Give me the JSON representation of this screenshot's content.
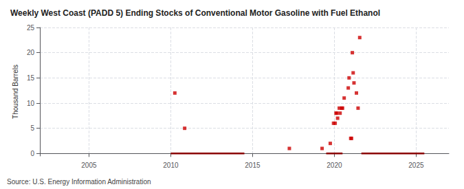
{
  "chart_data": {
    "type": "scatter",
    "title": "Weekly West Coast (PADD 5) Ending Stocks of Conventional Motor Gasoline with Fuel Ethanol",
    "ylabel": "Thousand Barrels",
    "annotations": [
      "Source: U.S. Energy Information Administration"
    ],
    "xlim": [
      2002,
      2027
    ],
    "ylim": [
      -0.5,
      25
    ],
    "xticks": [
      2005,
      2010,
      2015,
      2020,
      2025
    ],
    "yticks": [
      0,
      5,
      10,
      15,
      20,
      25
    ],
    "grid": true,
    "series": [
      {
        "type": "scatter",
        "color": "#cc0000",
        "marker": "square",
        "x": [
          2010.25,
          2010.85,
          2017.25,
          2019.25,
          2019.75,
          2019.95,
          2020.05,
          2020.1,
          2020.15,
          2020.2,
          2020.3,
          2020.35,
          2020.45,
          2020.5,
          2020.6,
          2020.85,
          2020.9,
          2021.0,
          2021.05,
          2021.1,
          2021.15,
          2021.2,
          2021.35,
          2021.45,
          2021.55
        ],
        "values": [
          12,
          5,
          1,
          1,
          2,
          6,
          6,
          8,
          8,
          7,
          9,
          8,
          9,
          9,
          11,
          13,
          15,
          3,
          3,
          20,
          16,
          14,
          12,
          9,
          23
        ]
      },
      {
        "type": "line",
        "color": "#8b0000",
        "line_style": "solid",
        "x": [
          2010.0,
          2014.5
        ],
        "values": [
          0,
          0
        ]
      },
      {
        "type": "line",
        "color": "#8b0000",
        "line_style": "solid",
        "x": [
          2019.5,
          2020.5
        ],
        "values": [
          0,
          0
        ]
      },
      {
        "type": "line",
        "color": "#8b0000",
        "line_style": "solid",
        "x": [
          2021.65,
          2025.5
        ],
        "values": [
          0,
          0
        ]
      }
    ]
  }
}
